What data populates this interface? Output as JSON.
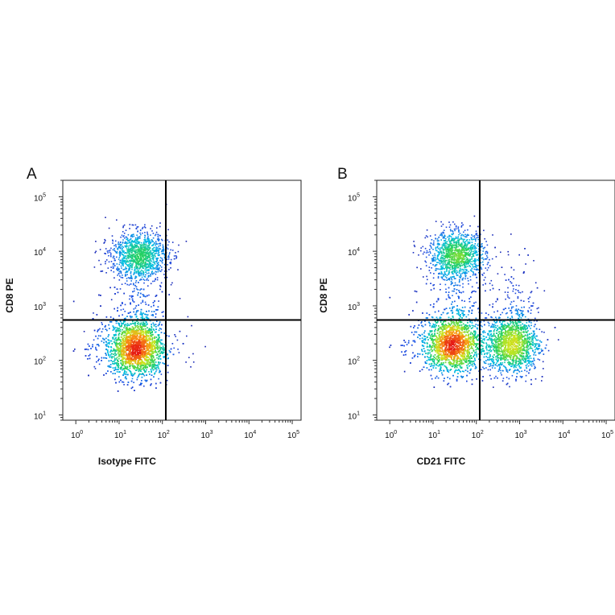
{
  "chart_data": [
    {
      "type": "scatter",
      "panel_label": "A",
      "xlabel": "Isotype FITC",
      "ylabel": "CD8 PE",
      "xscale": "log",
      "yscale": "log",
      "xlim": [
        0.5,
        160000
      ],
      "ylim": [
        8,
        200000
      ],
      "xtick_values": [
        1,
        10,
        100,
        1000,
        10000,
        100000
      ],
      "ytick_values": [
        10,
        100,
        1000,
        10000,
        100000
      ],
      "xtick_labels": [
        {
          "base": "10",
          "exp": "0"
        },
        {
          "base": "10",
          "exp": "1"
        },
        {
          "base": "10",
          "exp": "2"
        },
        {
          "base": "10",
          "exp": "3"
        },
        {
          "base": "10",
          "exp": "4"
        },
        {
          "base": "10",
          "exp": "5"
        }
      ],
      "ytick_labels": [
        {
          "base": "10",
          "exp": "1"
        },
        {
          "base": "10",
          "exp": "2"
        },
        {
          "base": "10",
          "exp": "3"
        },
        {
          "base": "10",
          "exp": "4"
        },
        {
          "base": "10",
          "exp": "5"
        }
      ],
      "quadrant_gate": {
        "x": 120,
        "y": 550
      },
      "grid": false,
      "color_scale": "density (blue-cyan-green-yellow-red)",
      "populations": [
        {
          "center_x": 25,
          "center_y": 170,
          "count": 4200
        },
        {
          "center_x": 28,
          "center_y": 8500,
          "count": 1200
        },
        {
          "center_x": 200,
          "center_y": 180,
          "count": 25
        }
      ]
    },
    {
      "type": "scatter",
      "panel_label": "B",
      "xlabel": "CD21 FITC",
      "ylabel": "CD8 PE",
      "xscale": "log",
      "yscale": "log",
      "xlim": [
        0.5,
        160000
      ],
      "ylim": [
        8,
        200000
      ],
      "xtick_values": [
        1,
        10,
        100,
        1000,
        10000,
        100000
      ],
      "ytick_values": [
        10,
        100,
        1000,
        10000,
        100000
      ],
      "xtick_labels": [
        {
          "base": "10",
          "exp": "0"
        },
        {
          "base": "10",
          "exp": "1"
        },
        {
          "base": "10",
          "exp": "2"
        },
        {
          "base": "10",
          "exp": "3"
        },
        {
          "base": "10",
          "exp": "4"
        },
        {
          "base": "10",
          "exp": "5"
        }
      ],
      "ytick_labels": [
        {
          "base": "10",
          "exp": "1"
        },
        {
          "base": "10",
          "exp": "2"
        },
        {
          "base": "10",
          "exp": "3"
        },
        {
          "base": "10",
          "exp": "4"
        },
        {
          "base": "10",
          "exp": "5"
        }
      ],
      "quadrant_gate": {
        "x": 120,
        "y": 550
      },
      "grid": false,
      "color_scale": "density (blue-cyan-green-yellow-red)",
      "populations": [
        {
          "center_x": 28,
          "center_y": 200,
          "count": 3500
        },
        {
          "center_x": 35,
          "center_y": 8500,
          "count": 1200
        },
        {
          "center_x": 650,
          "center_y": 200,
          "count": 2200
        }
      ]
    }
  ]
}
